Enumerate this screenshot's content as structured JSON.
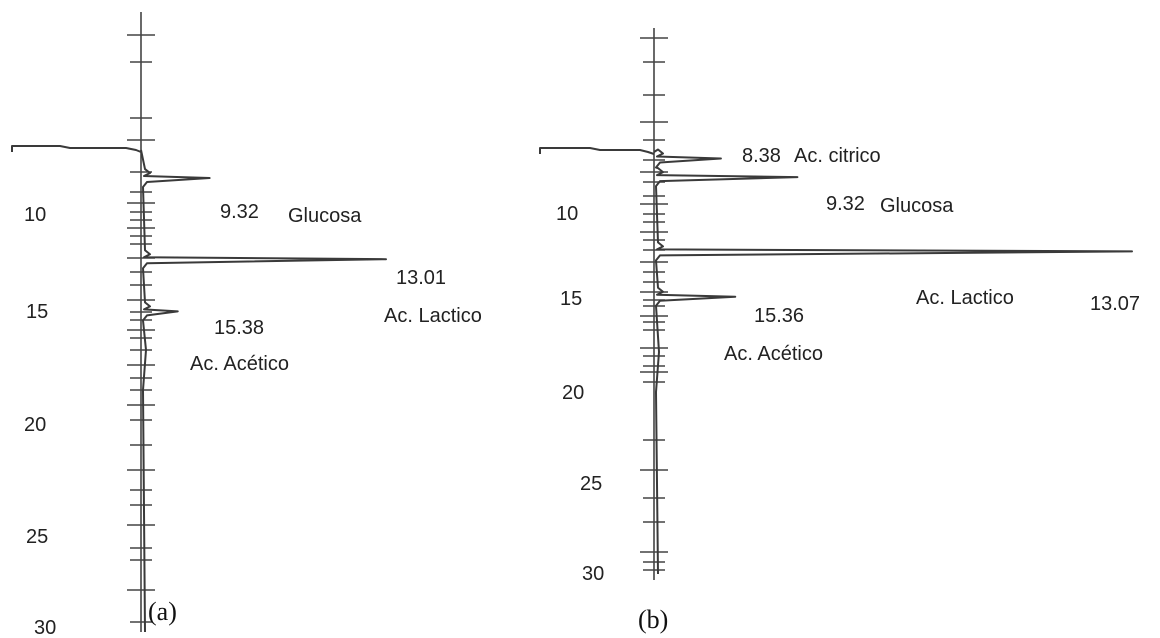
{
  "chart_data": [
    {
      "type": "line",
      "panel_label": "(a)",
      "axis_ticks": [
        "10",
        "15",
        "20",
        "25",
        "30"
      ],
      "peaks": [
        {
          "time": 9.32,
          "time_label": "9.32",
          "compound": "Glucosa",
          "relative_height": 0.28
        },
        {
          "time": 13.01,
          "time_label": "13.01",
          "compound": "Ac. Lactico",
          "relative_height": 1.0
        },
        {
          "time": 15.38,
          "time_label": "15.38",
          "compound": "Ac. Acético",
          "relative_height": 0.15
        }
      ]
    },
    {
      "type": "line",
      "panel_label": "(b)",
      "axis_ticks": [
        "10",
        "15",
        "20",
        "25",
        "30"
      ],
      "peaks": [
        {
          "time": 8.38,
          "time_label": "8.38",
          "compound": "Ac. citrico",
          "relative_height": 0.14
        },
        {
          "time": 9.32,
          "time_label": "9.32",
          "compound": "Glucosa",
          "relative_height": 0.3
        },
        {
          "time": 13.07,
          "time_label": "13.07",
          "compound": "Ac. Lactico",
          "relative_height": 1.0
        },
        {
          "time": 15.36,
          "time_label": "15.36",
          "compound": "Ac. Acético",
          "relative_height": 0.17
        }
      ]
    }
  ]
}
